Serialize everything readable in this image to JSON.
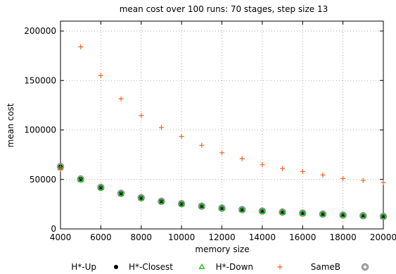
{
  "chart_data": {
    "type": "scatter",
    "title": "mean cost over 100 runs: 70 stages, step size 13",
    "xlabel": "memory size",
    "ylabel": "mean cost",
    "xlim": [
      4000,
      20000
    ],
    "ylim": [
      0,
      210000
    ],
    "xticks": [
      "4000",
      "6000",
      "8000",
      "10000",
      "12000",
      "14000",
      "16000",
      "18000",
      "20000"
    ],
    "yticks": [
      "0",
      "50000",
      "100000",
      "150000",
      "200000"
    ],
    "grid": true,
    "legend_position": "bottom",
    "x": [
      4000,
      5000,
      6000,
      7000,
      8000,
      9000,
      10000,
      11000,
      12000,
      13000,
      14000,
      15000,
      16000,
      17000,
      18000,
      19000,
      20000
    ],
    "series": [
      {
        "name": "H*-Up",
        "marker": "dot",
        "color": "#000000",
        "values": [
          63000,
          50500,
          42000,
          36000,
          31500,
          28000,
          25500,
          23000,
          21000,
          19500,
          18000,
          17000,
          16000,
          15000,
          14000,
          13300,
          12700
        ]
      },
      {
        "name": "H*-Closest",
        "marker": "triangle",
        "color": "#00c000",
        "values": [
          61500,
          49500,
          41500,
          35500,
          31000,
          27500,
          25000,
          22800,
          20800,
          19200,
          17800,
          16800,
          15800,
          14800,
          14000,
          13200,
          12500
        ]
      },
      {
        "name": "H*-Down",
        "marker": "plus",
        "color": "#ff6020",
        "values": [
          60500,
          184000,
          155000,
          131500,
          114500,
          102500,
          93500,
          84500,
          77000,
          71000,
          65000,
          61000,
          58000,
          54500,
          51000,
          49000,
          47000
        ]
      },
      {
        "name": "SameB",
        "marker": "ring",
        "color": "#888888",
        "values": [
          63000,
          50500,
          42000,
          36000,
          31500,
          28000,
          25500,
          23000,
          21000,
          19500,
          18000,
          17000,
          16000,
          15000,
          14000,
          13300,
          12700
        ]
      }
    ]
  }
}
